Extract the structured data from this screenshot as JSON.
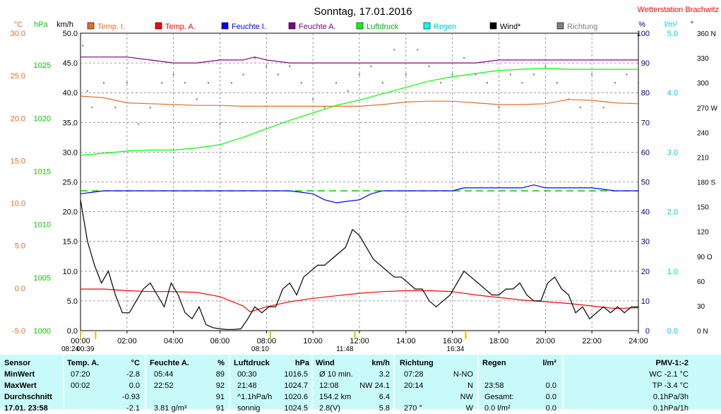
{
  "chart_data": {
    "type": "line",
    "title": "Sonntag, 17.01.2016",
    "station": "Wetterstation Brachwitz",
    "x_range_hours": [
      0,
      24
    ],
    "x_tick_labels": [
      "00:00",
      "02:00",
      "04:00",
      "06:00",
      "08:00",
      "10:00",
      "12:00",
      "14:00",
      "16:00",
      "18:00",
      "20:00",
      "22:00",
      "24:00"
    ],
    "axes": {
      "temp": {
        "unit": "°C",
        "ticks": [
          "-5.0",
          "0.0",
          "5.0",
          "10.0",
          "15.0",
          "20.0",
          "25.0",
          "30.0"
        ],
        "range": [
          -5,
          30
        ],
        "color": "#e36c2a"
      },
      "hpa": {
        "unit": "hPa",
        "ticks": [
          "1000",
          "1005",
          "1010",
          "1015",
          "1020",
          "1025"
        ],
        "range": [
          1000,
          1028
        ],
        "color": "#00cc00"
      },
      "kmh": {
        "unit": "km/h",
        "ticks": [
          "0.0",
          "5.0",
          "10.0",
          "15.0",
          "20.0",
          "25.0",
          "30.0",
          "35.0",
          "40.0",
          "45.0",
          "50.0"
        ],
        "range": [
          0,
          50
        ],
        "color": "#000000"
      },
      "pct": {
        "unit": "%",
        "ticks": [
          "0",
          "10",
          "20",
          "30",
          "40",
          "50",
          "60",
          "70",
          "80",
          "90",
          "100"
        ],
        "range": [
          0,
          100
        ],
        "color": "#000080"
      },
      "rain": {
        "unit": "l/m²",
        "ticks": [
          "0.0",
          "1.0",
          "2.0",
          "3.0",
          "4.0",
          "5.0"
        ],
        "range": [
          0,
          5
        ],
        "color": "#00cccc"
      },
      "dir": {
        "unit": "°",
        "ticks": [
          "0 N",
          "30",
          "60",
          "90 O",
          "120",
          "150",
          "180 S",
          "210",
          "240",
          "270 W",
          "300",
          "330",
          "360 N"
        ],
        "range": [
          0,
          360
        ],
        "color": "#000000"
      }
    },
    "legend": [
      {
        "label": "Temp. I.",
        "color": "#e36c2a"
      },
      {
        "label": "Temp. A.",
        "color": "#ff0000"
      },
      {
        "label": "Feuchte I.",
        "color": "#0000ff"
      },
      {
        "label": "Feuchte A.",
        "color": "#800080"
      },
      {
        "label": "Luftdruck",
        "color": "#00ff00"
      },
      {
        "label": "Regen",
        "color": "#00ffff"
      },
      {
        "label": "Wind*",
        "color": "#000000"
      },
      {
        "label": "Richtung",
        "color": "#808080"
      }
    ],
    "series": [
      {
        "name": "Temp. I.",
        "axis": "temp",
        "color": "#e36c2a",
        "x": [
          0,
          1,
          2,
          3,
          4,
          5,
          6,
          7,
          8,
          9,
          10,
          11,
          12,
          13,
          14,
          15,
          16,
          17,
          18,
          19,
          20,
          21,
          22,
          23,
          24
        ],
        "y": [
          22.6,
          22.4,
          21.8,
          21.7,
          21.6,
          21.5,
          21.5,
          21.4,
          21.4,
          21.4,
          21.4,
          21.4,
          21.4,
          21.6,
          21.9,
          22.0,
          22.0,
          21.8,
          21.6,
          21.6,
          21.7,
          22.2,
          22.1,
          21.8,
          21.7
        ]
      },
      {
        "name": "Temp. A.",
        "axis": "temp",
        "color": "#ff0000",
        "x": [
          0,
          1,
          2,
          3,
          4,
          5,
          6,
          7,
          7.3,
          8,
          9,
          10,
          11,
          12,
          13,
          14,
          15,
          16,
          17,
          18,
          19,
          20,
          21,
          22,
          23,
          24
        ],
        "y": [
          -0.1,
          -0.1,
          -0.3,
          -0.4,
          -0.4,
          -0.5,
          -1.0,
          -2.1,
          -2.8,
          -2.2,
          -1.6,
          -1.2,
          -0.9,
          -0.6,
          -0.4,
          -0.3,
          -0.3,
          -0.4,
          -0.8,
          -1.1,
          -1.4,
          -1.6,
          -1.8,
          -2.1,
          -2.4,
          -2.3
        ]
      },
      {
        "name": "Feuchte I.",
        "axis": "pct",
        "color": "#0000ff",
        "x": [
          0,
          1,
          2,
          3,
          4,
          5,
          6,
          7,
          8,
          9,
          10,
          10.5,
          11,
          11.5,
          12,
          12.5,
          13,
          14,
          15,
          16,
          16.5,
          17,
          18,
          19,
          19.5,
          20,
          21,
          22,
          23,
          24
        ],
        "y": [
          46,
          47,
          47,
          47,
          47,
          47,
          47,
          47,
          47,
          47,
          46,
          44,
          43,
          43.5,
          44,
          46,
          47,
          47,
          47,
          47,
          48,
          48,
          48,
          48,
          49,
          48,
          48,
          48,
          47,
          47
        ]
      },
      {
        "name": "Feuchte A.",
        "axis": "pct",
        "color": "#800080",
        "x": [
          0,
          1,
          2,
          3,
          4,
          5,
          6,
          7,
          7.5,
          8,
          9,
          10,
          11,
          12,
          13,
          14,
          15,
          16,
          17,
          18,
          19,
          20,
          21,
          22,
          23,
          24
        ],
        "y": [
          92,
          92,
          92,
          91,
          90,
          90,
          91,
          91,
          92,
          91,
          90,
          90,
          90,
          90,
          90,
          90,
          90,
          90,
          90,
          91,
          91,
          91,
          91,
          91,
          91,
          91
        ]
      },
      {
        "name": "Luftdruck",
        "axis": "hpa",
        "color": "#00ff00",
        "x": [
          0,
          1,
          2,
          3,
          4,
          5,
          6,
          7,
          8,
          9,
          10,
          11,
          12,
          13,
          14,
          15,
          16,
          17,
          18,
          19,
          20,
          21,
          22,
          23,
          24
        ],
        "y": [
          1016.5,
          1016.7,
          1016.9,
          1017.0,
          1017.0,
          1017.2,
          1017.5,
          1018.2,
          1019.0,
          1019.8,
          1020.5,
          1021.2,
          1021.7,
          1022.3,
          1022.9,
          1023.5,
          1023.9,
          1024.2,
          1024.5,
          1024.6,
          1024.7,
          1024.6,
          1024.6,
          1024.6,
          1024.6
        ]
      },
      {
        "name": "Wind*",
        "axis": "kmh",
        "color": "#000000",
        "x": [
          0,
          0.3,
          0.6,
          0.9,
          1.2,
          1.5,
          1.8,
          2.1,
          2.4,
          2.7,
          3.0,
          3.3,
          3.6,
          3.9,
          4.2,
          4.5,
          4.8,
          5.1,
          5.4,
          5.7,
          6.0,
          6.3,
          6.6,
          6.9,
          7.2,
          7.5,
          7.8,
          8.1,
          8.4,
          8.7,
          9.0,
          9.3,
          9.6,
          9.9,
          10.2,
          10.5,
          10.8,
          11.1,
          11.4,
          11.7,
          12.0,
          12.3,
          12.6,
          12.9,
          13.2,
          13.5,
          13.8,
          14.1,
          14.4,
          14.7,
          15.0,
          15.3,
          15.6,
          15.9,
          16.2,
          16.5,
          16.8,
          17.1,
          17.4,
          17.7,
          18.0,
          18.3,
          18.6,
          18.9,
          19.2,
          19.5,
          19.8,
          20.1,
          20.4,
          20.7,
          21.0,
          21.3,
          21.6,
          21.9,
          22.2,
          22.5,
          22.8,
          23.1,
          23.4,
          23.7,
          24.0
        ],
        "y": [
          22,
          15,
          11,
          8,
          10,
          6,
          3,
          3,
          5,
          7,
          8,
          6,
          4,
          8,
          6,
          3,
          2,
          4,
          1,
          0.5,
          0.3,
          0.2,
          0.2,
          0.3,
          2,
          4,
          3,
          4,
          4,
          7,
          8,
          6,
          9,
          10,
          11,
          11,
          12,
          13,
          14,
          17,
          16,
          14,
          12,
          11,
          10,
          9,
          9,
          8,
          7,
          7,
          5,
          4,
          5,
          6,
          8,
          10,
          9,
          8,
          7,
          6,
          6,
          7,
          7,
          8,
          6,
          5,
          5,
          8,
          9,
          7,
          6,
          3,
          4,
          2,
          3,
          4,
          3,
          4,
          3,
          4,
          4
        ]
      }
    ],
    "direction_points": [
      [
        0.1,
        345
      ],
      [
        0.3,
        290
      ],
      [
        0.5,
        270
      ],
      [
        1.0,
        300
      ],
      [
        1.5,
        270
      ],
      [
        2.0,
        300
      ],
      [
        2.5,
        250
      ],
      [
        3.0,
        270
      ],
      [
        3.5,
        300
      ],
      [
        4.0,
        310
      ],
      [
        4.5,
        300
      ],
      [
        5.0,
        280
      ],
      [
        5.5,
        300
      ],
      [
        6.0,
        250
      ],
      [
        6.5,
        300
      ],
      [
        7.0,
        310
      ],
      [
        7.5,
        330
      ],
      [
        8.0,
        320
      ],
      [
        8.5,
        310
      ],
      [
        9.0,
        320
      ],
      [
        9.5,
        300
      ],
      [
        10.0,
        280
      ],
      [
        10.5,
        270
      ],
      [
        11.0,
        300
      ],
      [
        11.5,
        290
      ],
      [
        12.0,
        310
      ],
      [
        12.5,
        320
      ],
      [
        13.0,
        300
      ],
      [
        13.5,
        340
      ],
      [
        14.0,
        310
      ],
      [
        14.5,
        340
      ],
      [
        15.0,
        320
      ],
      [
        15.5,
        300
      ],
      [
        16.0,
        310
      ],
      [
        16.5,
        330
      ],
      [
        17.0,
        310
      ],
      [
        17.5,
        300
      ],
      [
        18.0,
        270
      ],
      [
        18.5,
        310
      ],
      [
        19.0,
        300
      ],
      [
        19.5,
        310
      ],
      [
        20.0,
        320
      ],
      [
        20.5,
        300
      ],
      [
        21.0,
        280
      ],
      [
        21.5,
        270
      ],
      [
        22.0,
        310
      ],
      [
        22.5,
        270
      ],
      [
        23.0,
        300
      ],
      [
        23.5,
        310
      ],
      [
        24.0,
        300
      ]
    ],
    "dashed_reference": {
      "axis": "pct",
      "value": 47,
      "color": "#00cc00"
    },
    "events": [
      {
        "time": "08:24",
        "x": 0.0
      },
      {
        "time": "00:39",
        "x": 0.65
      },
      {
        "time": "08:10",
        "x": 8.17
      },
      {
        "time": "11:48",
        "x": 11.8
      },
      {
        "time": "16:34",
        "x": 16.57
      }
    ]
  },
  "table": {
    "headers": [
      "Sensor",
      "Temp. A.",
      "°C",
      "Feuchte A.",
      "%",
      "Luftdruck",
      "hPa",
      "Wind",
      "km/h",
      "Richtung",
      "Regen",
      "l/m²",
      "PMV-1:-2"
    ],
    "rows": [
      {
        "label": "MinWert",
        "cells": [
          "07:20",
          "-2.8",
          "05:44",
          "89",
          "00:30",
          "1016.5",
          "Ø 10 min.",
          "3.2",
          "07:28",
          "N-NO",
          "",
          "",
          "WC -2.1 °C"
        ]
      },
      {
        "label": "MaxWert",
        "cells": [
          "00:02",
          "0.0",
          "22:52",
          "92",
          "21:48",
          "1024.7",
          "12:08",
          "NW 24.1",
          "20:14",
          "N",
          "23:58",
          "0.0",
          "TP -3.4 °C"
        ]
      },
      {
        "label": "Durchschnitt",
        "cells": [
          "",
          "-0.93",
          "",
          "91",
          "^1.1hPa/h",
          "1020.6",
          "154.2 km",
          "6.4",
          "",
          "NW",
          "Gesamt:",
          "0.0",
          "0.1hPa/3h"
        ]
      },
      {
        "label": "17.01. 23:58",
        "cells": [
          "",
          "-2.1",
          "3.81 g/m³",
          "91",
          "sonnig",
          "1024.5",
          "2.8(V)",
          "5.8",
          "270 °",
          "W",
          "0.0 l/m²",
          "0.0",
          "0.1hPa/1h"
        ]
      }
    ]
  }
}
